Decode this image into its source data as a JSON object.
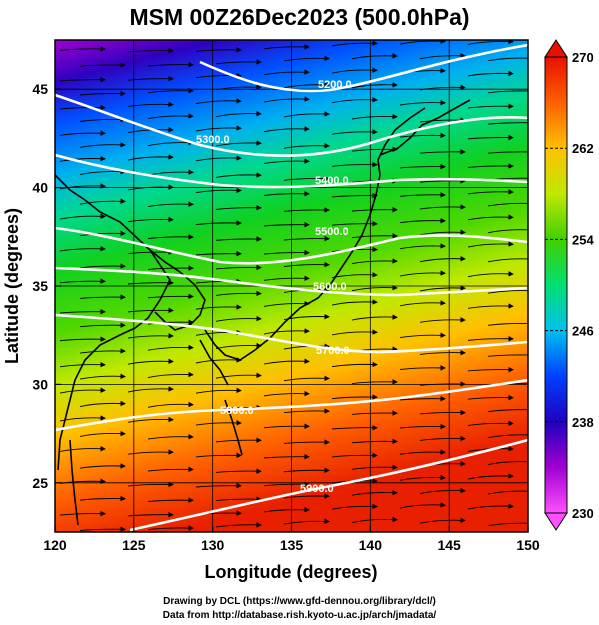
{
  "title": "MSM 00Z26Dec2023 (500.0hPa)",
  "credits": {
    "line1": "Drawing by DCL (https://www.gfd-dennou.org/library/dcl/)",
    "line2": "Data from http://database.rish.kyoto-u.ac.jp/arch/jmadata/"
  },
  "axes": {
    "xlabel": "Longitude (degrees)",
    "ylabel": "Latitude  (degrees)",
    "xlim": [
      120,
      150
    ],
    "ylim": [
      22.5,
      47.5
    ],
    "xticks": [
      "120",
      "125",
      "130",
      "135",
      "140",
      "145",
      "150"
    ],
    "yticks": [
      "25",
      "30",
      "35",
      "40",
      "45"
    ]
  },
  "colorbar": {
    "range": [
      230,
      270
    ],
    "ticks": [
      "230",
      "238",
      "246",
      "254",
      "262",
      "270"
    ],
    "colors": [
      "#ff40ff",
      "#a000d0",
      "#3000c0",
      "#0040ff",
      "#0090ff",
      "#00d8f0",
      "#00e070",
      "#20d020",
      "#90e000",
      "#f0f000",
      "#ffc000",
      "#ff8000",
      "#ff4000",
      "#e81000"
    ]
  },
  "contours": [
    {
      "label": "5200.0"
    },
    {
      "label": "5300.0"
    },
    {
      "label": "5400.0"
    },
    {
      "label": "5500.0"
    },
    {
      "label": "5600.0"
    },
    {
      "label": "5700.0"
    },
    {
      "label": "5800.0"
    },
    {
      "label": "5900.0"
    }
  ],
  "chart_data": {
    "type": "heatmap",
    "variable_range": [
      230,
      270
    ],
    "x_range": [
      120,
      150
    ],
    "y_range": [
      22.5,
      47.5
    ],
    "contour_levels": [
      5200,
      5300,
      5400,
      5500,
      5600,
      5700,
      5800,
      5900
    ]
  }
}
